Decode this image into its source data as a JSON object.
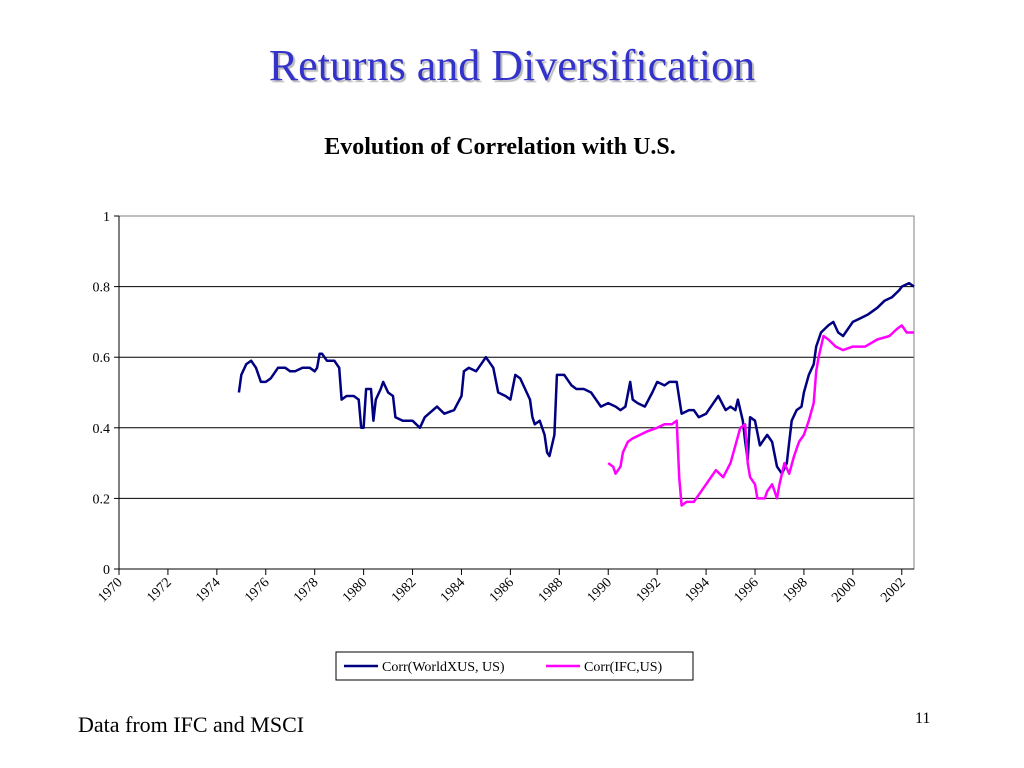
{
  "slide": {
    "title": "Returns and Diversification",
    "footer": "Data from IFC and MSCI",
    "page_number": "11"
  },
  "chart_data": {
    "type": "line",
    "title": "Evolution of Correlation with U.S.",
    "xlabel": "",
    "ylabel": "",
    "xlim": [
      1970,
      2002.5
    ],
    "ylim": [
      0,
      1
    ],
    "x_ticks": [
      "1970",
      "1972",
      "1974",
      "1976",
      "1978",
      "1980",
      "1982",
      "1984",
      "1986",
      "1988",
      "1990",
      "1992",
      "1994",
      "1996",
      "1998",
      "2000",
      "2002"
    ],
    "y_ticks": [
      "0",
      "0.2",
      "0.4",
      "0.6",
      "0.8",
      "1"
    ],
    "grid": "horizontal",
    "legend": "bottom",
    "series": [
      {
        "name": "Corr(WorldXUS, US)",
        "color": "#000080",
        "points": [
          [
            1974.9,
            0.5
          ],
          [
            1975.0,
            0.55
          ],
          [
            1975.2,
            0.58
          ],
          [
            1975.4,
            0.59
          ],
          [
            1975.6,
            0.57
          ],
          [
            1975.8,
            0.53
          ],
          [
            1976.0,
            0.53
          ],
          [
            1976.2,
            0.54
          ],
          [
            1976.5,
            0.57
          ],
          [
            1976.8,
            0.57
          ],
          [
            1977.0,
            0.56
          ],
          [
            1977.2,
            0.56
          ],
          [
            1977.5,
            0.57
          ],
          [
            1977.8,
            0.57
          ],
          [
            1978.0,
            0.56
          ],
          [
            1978.1,
            0.57
          ],
          [
            1978.2,
            0.61
          ],
          [
            1978.3,
            0.61
          ],
          [
            1978.5,
            0.59
          ],
          [
            1978.8,
            0.59
          ],
          [
            1979.0,
            0.57
          ],
          [
            1979.1,
            0.48
          ],
          [
            1979.3,
            0.49
          ],
          [
            1979.6,
            0.49
          ],
          [
            1979.8,
            0.48
          ],
          [
            1979.9,
            0.4
          ],
          [
            1980.0,
            0.4
          ],
          [
            1980.1,
            0.51
          ],
          [
            1980.3,
            0.51
          ],
          [
            1980.4,
            0.42
          ],
          [
            1980.5,
            0.48
          ],
          [
            1980.7,
            0.51
          ],
          [
            1980.8,
            0.53
          ],
          [
            1981.0,
            0.5
          ],
          [
            1981.2,
            0.49
          ],
          [
            1981.3,
            0.43
          ],
          [
            1981.6,
            0.42
          ],
          [
            1982.0,
            0.42
          ],
          [
            1982.3,
            0.4
          ],
          [
            1982.5,
            0.43
          ],
          [
            1983.0,
            0.46
          ],
          [
            1983.3,
            0.44
          ],
          [
            1983.7,
            0.45
          ],
          [
            1984.0,
            0.49
          ],
          [
            1984.1,
            0.56
          ],
          [
            1984.3,
            0.57
          ],
          [
            1984.6,
            0.56
          ],
          [
            1984.8,
            0.58
          ],
          [
            1985.0,
            0.6
          ],
          [
            1985.3,
            0.57
          ],
          [
            1985.5,
            0.5
          ],
          [
            1985.8,
            0.49
          ],
          [
            1986.0,
            0.48
          ],
          [
            1986.2,
            0.55
          ],
          [
            1986.4,
            0.54
          ],
          [
            1986.6,
            0.51
          ],
          [
            1986.8,
            0.48
          ],
          [
            1986.9,
            0.43
          ],
          [
            1987.0,
            0.41
          ],
          [
            1987.2,
            0.42
          ],
          [
            1987.4,
            0.38
          ],
          [
            1987.5,
            0.33
          ],
          [
            1987.6,
            0.32
          ],
          [
            1987.8,
            0.38
          ],
          [
            1987.9,
            0.55
          ],
          [
            1988.2,
            0.55
          ],
          [
            1988.5,
            0.52
          ],
          [
            1988.7,
            0.51
          ],
          [
            1989.0,
            0.51
          ],
          [
            1989.3,
            0.5
          ],
          [
            1989.5,
            0.48
          ],
          [
            1989.7,
            0.46
          ],
          [
            1990.0,
            0.47
          ],
          [
            1990.3,
            0.46
          ],
          [
            1990.5,
            0.45
          ],
          [
            1990.7,
            0.46
          ],
          [
            1990.9,
            0.53
          ],
          [
            1991.0,
            0.48
          ],
          [
            1991.2,
            0.47
          ],
          [
            1991.5,
            0.46
          ],
          [
            1991.8,
            0.5
          ],
          [
            1992.0,
            0.53
          ],
          [
            1992.3,
            0.52
          ],
          [
            1992.5,
            0.53
          ],
          [
            1992.8,
            0.53
          ],
          [
            1993.0,
            0.44
          ],
          [
            1993.3,
            0.45
          ],
          [
            1993.5,
            0.45
          ],
          [
            1993.7,
            0.43
          ],
          [
            1994.0,
            0.44
          ],
          [
            1994.3,
            0.47
          ],
          [
            1994.5,
            0.49
          ],
          [
            1994.8,
            0.45
          ],
          [
            1995.0,
            0.46
          ],
          [
            1995.2,
            0.45
          ],
          [
            1995.3,
            0.48
          ],
          [
            1995.5,
            0.42
          ],
          [
            1995.6,
            0.36
          ],
          [
            1995.7,
            0.31
          ],
          [
            1995.8,
            0.43
          ],
          [
            1996.0,
            0.42
          ],
          [
            1996.2,
            0.35
          ],
          [
            1996.3,
            0.36
          ],
          [
            1996.5,
            0.38
          ],
          [
            1996.7,
            0.36
          ],
          [
            1996.9,
            0.29
          ],
          [
            1997.1,
            0.27
          ],
          [
            1997.3,
            0.3
          ],
          [
            1997.5,
            0.42
          ],
          [
            1997.7,
            0.45
          ],
          [
            1997.9,
            0.46
          ],
          [
            1998.0,
            0.5
          ],
          [
            1998.2,
            0.55
          ],
          [
            1998.4,
            0.58
          ],
          [
            1998.5,
            0.63
          ],
          [
            1998.7,
            0.67
          ],
          [
            1999.0,
            0.69
          ],
          [
            1999.2,
            0.7
          ],
          [
            1999.4,
            0.67
          ],
          [
            1999.6,
            0.66
          ],
          [
            2000.0,
            0.7
          ],
          [
            2000.3,
            0.71
          ],
          [
            2000.6,
            0.72
          ],
          [
            2001.0,
            0.74
          ],
          [
            2001.3,
            0.76
          ],
          [
            2001.6,
            0.77
          ],
          [
            2001.9,
            0.79
          ],
          [
            2002.0,
            0.8
          ],
          [
            2002.3,
            0.81
          ],
          [
            2002.5,
            0.8
          ]
        ]
      },
      {
        "name": "Corr(IFC,US)",
        "color": "#ff00ff",
        "points": [
          [
            1990.0,
            0.3
          ],
          [
            1990.2,
            0.29
          ],
          [
            1990.3,
            0.27
          ],
          [
            1990.5,
            0.29
          ],
          [
            1990.6,
            0.33
          ],
          [
            1990.8,
            0.36
          ],
          [
            1991.0,
            0.37
          ],
          [
            1991.3,
            0.38
          ],
          [
            1991.6,
            0.39
          ],
          [
            1992.0,
            0.4
          ],
          [
            1992.3,
            0.41
          ],
          [
            1992.6,
            0.41
          ],
          [
            1992.8,
            0.42
          ],
          [
            1992.9,
            0.26
          ],
          [
            1993.0,
            0.18
          ],
          [
            1993.2,
            0.19
          ],
          [
            1993.5,
            0.19
          ],
          [
            1993.8,
            0.22
          ],
          [
            1994.0,
            0.24
          ],
          [
            1994.2,
            0.26
          ],
          [
            1994.4,
            0.28
          ],
          [
            1994.7,
            0.26
          ],
          [
            1995.0,
            0.3
          ],
          [
            1995.2,
            0.35
          ],
          [
            1995.4,
            0.4
          ],
          [
            1995.6,
            0.41
          ],
          [
            1995.7,
            0.3
          ],
          [
            1995.8,
            0.26
          ],
          [
            1996.0,
            0.24
          ],
          [
            1996.1,
            0.2
          ],
          [
            1996.4,
            0.2
          ],
          [
            1996.5,
            0.22
          ],
          [
            1996.7,
            0.24
          ],
          [
            1996.8,
            0.22
          ],
          [
            1996.9,
            0.2
          ],
          [
            1997.0,
            0.24
          ],
          [
            1997.2,
            0.3
          ],
          [
            1997.4,
            0.27
          ],
          [
            1997.6,
            0.32
          ],
          [
            1997.8,
            0.36
          ],
          [
            1998.0,
            0.38
          ],
          [
            1998.2,
            0.42
          ],
          [
            1998.4,
            0.47
          ],
          [
            1998.5,
            0.56
          ],
          [
            1998.6,
            0.6
          ],
          [
            1998.8,
            0.66
          ],
          [
            1999.0,
            0.65
          ],
          [
            1999.3,
            0.63
          ],
          [
            1999.6,
            0.62
          ],
          [
            2000.0,
            0.63
          ],
          [
            2000.5,
            0.63
          ],
          [
            2001.0,
            0.65
          ],
          [
            2001.5,
            0.66
          ],
          [
            2001.8,
            0.68
          ],
          [
            2002.0,
            0.69
          ],
          [
            2002.2,
            0.67
          ],
          [
            2002.5,
            0.67
          ]
        ]
      }
    ]
  }
}
